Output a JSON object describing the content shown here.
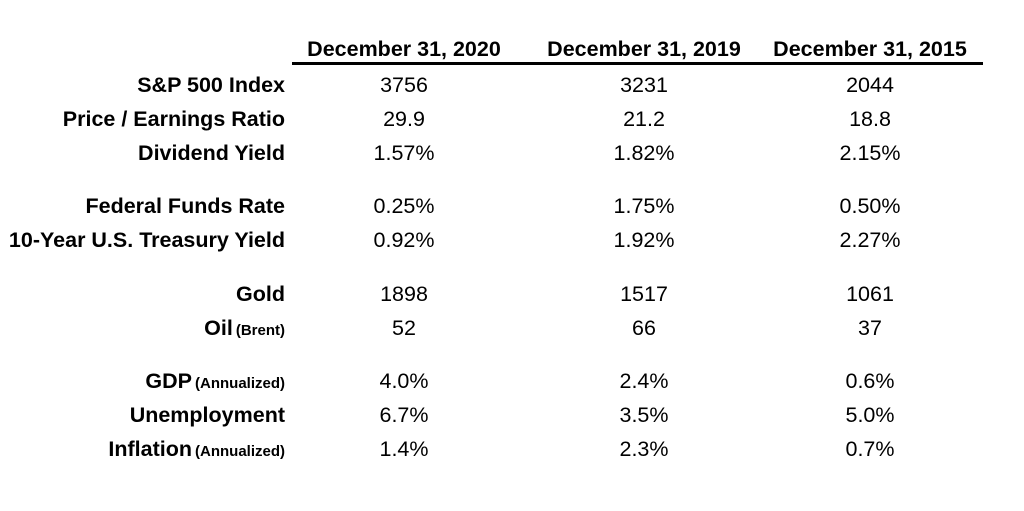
{
  "table": {
    "columns": [
      "December 31, 2020",
      "December 31, 2019",
      "December 31, 2015"
    ],
    "groups": [
      {
        "rows": [
          {
            "label": "S&P 500 Index",
            "sub": "",
            "values": [
              "3756",
              "3231",
              "2044"
            ]
          },
          {
            "label": "Price / Earnings Ratio",
            "sub": "",
            "values": [
              "29.9",
              "21.2",
              "18.8"
            ]
          },
          {
            "label": "Dividend Yield",
            "sub": "",
            "values": [
              "1.57%",
              "1.82%",
              "2.15%"
            ]
          }
        ]
      },
      {
        "rows": [
          {
            "label": "Federal Funds Rate",
            "sub": "",
            "values": [
              "0.25%",
              "1.75%",
              "0.50%"
            ]
          },
          {
            "label": "10-Year U.S. Treasury Yield",
            "sub": "",
            "values": [
              "0.92%",
              "1.92%",
              "2.27%"
            ]
          }
        ]
      },
      {
        "rows": [
          {
            "label": "Gold",
            "sub": "",
            "values": [
              "1898",
              "1517",
              "1061"
            ]
          },
          {
            "label": "Oil",
            "sub": "(Brent)",
            "values": [
              "52",
              "66",
              "37"
            ]
          }
        ]
      },
      {
        "rows": [
          {
            "label": "GDP",
            "sub": "(Annualized)",
            "values": [
              "4.0%",
              "2.4%",
              "0.6%"
            ]
          },
          {
            "label": "Unemployment",
            "sub": "",
            "values": [
              "6.7%",
              "3.5%",
              "5.0%"
            ]
          },
          {
            "label": "Inflation",
            "sub": "(Annualized)",
            "values": [
              "1.4%",
              "2.3%",
              "0.7%"
            ]
          }
        ]
      }
    ],
    "text_color": "#000000",
    "background_color": "#ffffff"
  }
}
